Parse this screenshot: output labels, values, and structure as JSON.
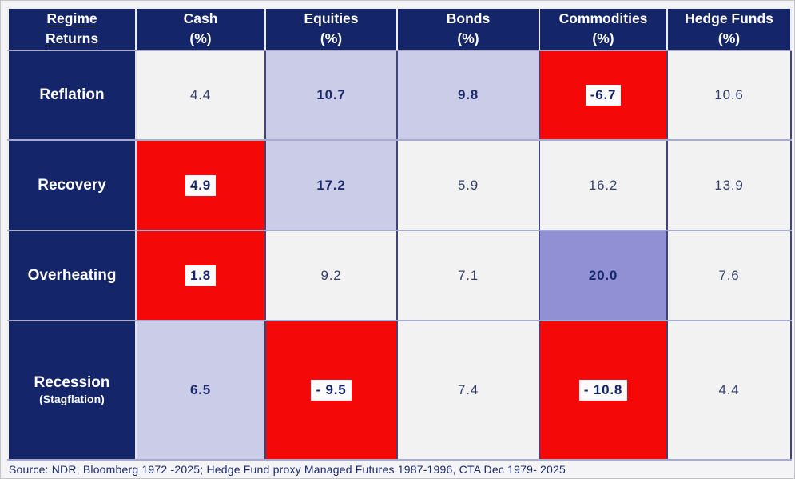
{
  "table": {
    "corner": {
      "line1": "Regime",
      "line2": "Returns"
    },
    "columns": [
      {
        "label": "Cash",
        "unit": "(%)"
      },
      {
        "label": "Equities",
        "unit": "(%)"
      },
      {
        "label": "Bonds",
        "unit": "(%)"
      },
      {
        "label": "Commodities",
        "unit": "(%)"
      },
      {
        "label": "Hedge Funds",
        "unit": "(%)"
      }
    ],
    "rows": [
      {
        "label": "Reflation",
        "sublabel": "",
        "cells": [
          {
            "value": "4.4"
          },
          {
            "value": "10.7"
          },
          {
            "value": "9.8"
          },
          {
            "value": "-6.7"
          },
          {
            "value": "10.6"
          }
        ]
      },
      {
        "label": "Recovery",
        "sublabel": "",
        "cells": [
          {
            "value": "4.9"
          },
          {
            "value": "17.2"
          },
          {
            "value": "5.9"
          },
          {
            "value": "16.2"
          },
          {
            "value": "13.9"
          }
        ]
      },
      {
        "label": "Overheating",
        "sublabel": "",
        "cells": [
          {
            "value": "1.8"
          },
          {
            "value": "9.2"
          },
          {
            "value": "7.1"
          },
          {
            "value": "20.0"
          },
          {
            "value": "7.6"
          }
        ]
      },
      {
        "label": "Recession",
        "sublabel": "(Stagflation)",
        "cells": [
          {
            "value": "6.5"
          },
          {
            "value": "- 9.5"
          },
          {
            "value": "7.4"
          },
          {
            "value": "- 10.8"
          },
          {
            "value": "4.4"
          }
        ]
      }
    ]
  },
  "source_note": "Source: NDR, Bloomberg 1972 -2025; Hedge Fund proxy Managed Futures 1987-1996, CTA Dec 1979- 2025",
  "colors": {
    "header_navy": "#14256a",
    "negative_red": "#f50808",
    "highlight_lavender": "#cbcce8",
    "best_purple": "#9190d5",
    "cell_offwhite": "#f2f2f2",
    "value_navy": "#1b2a6b"
  },
  "chart_data": {
    "type": "table",
    "title": "Regime Returns",
    "categories": [
      "Reflation",
      "Recovery",
      "Overheating",
      "Recession (Stagflation)"
    ],
    "series": [
      {
        "name": "Cash (%)",
        "values": [
          4.4,
          4.9,
          1.8,
          6.5
        ]
      },
      {
        "name": "Equities (%)",
        "values": [
          10.7,
          17.2,
          9.2,
          -9.5
        ]
      },
      {
        "name": "Bonds (%)",
        "values": [
          9.8,
          5.9,
          7.1,
          7.4
        ]
      },
      {
        "name": "Commodities (%)",
        "values": [
          -6.7,
          16.2,
          20.0,
          -10.8
        ]
      },
      {
        "name": "Hedge Funds (%)",
        "values": [
          10.6,
          13.9,
          7.6,
          4.4
        ]
      }
    ],
    "notes": "Red cells = worst/negative outcomes (value shown on white highlight); lavender/purple cells = strongest outcomes (bold)",
    "source": "Source: NDR, Bloomberg 1972 -2025; Hedge Fund proxy Managed Futures 1987-1996, CTA Dec 1979- 2025"
  }
}
